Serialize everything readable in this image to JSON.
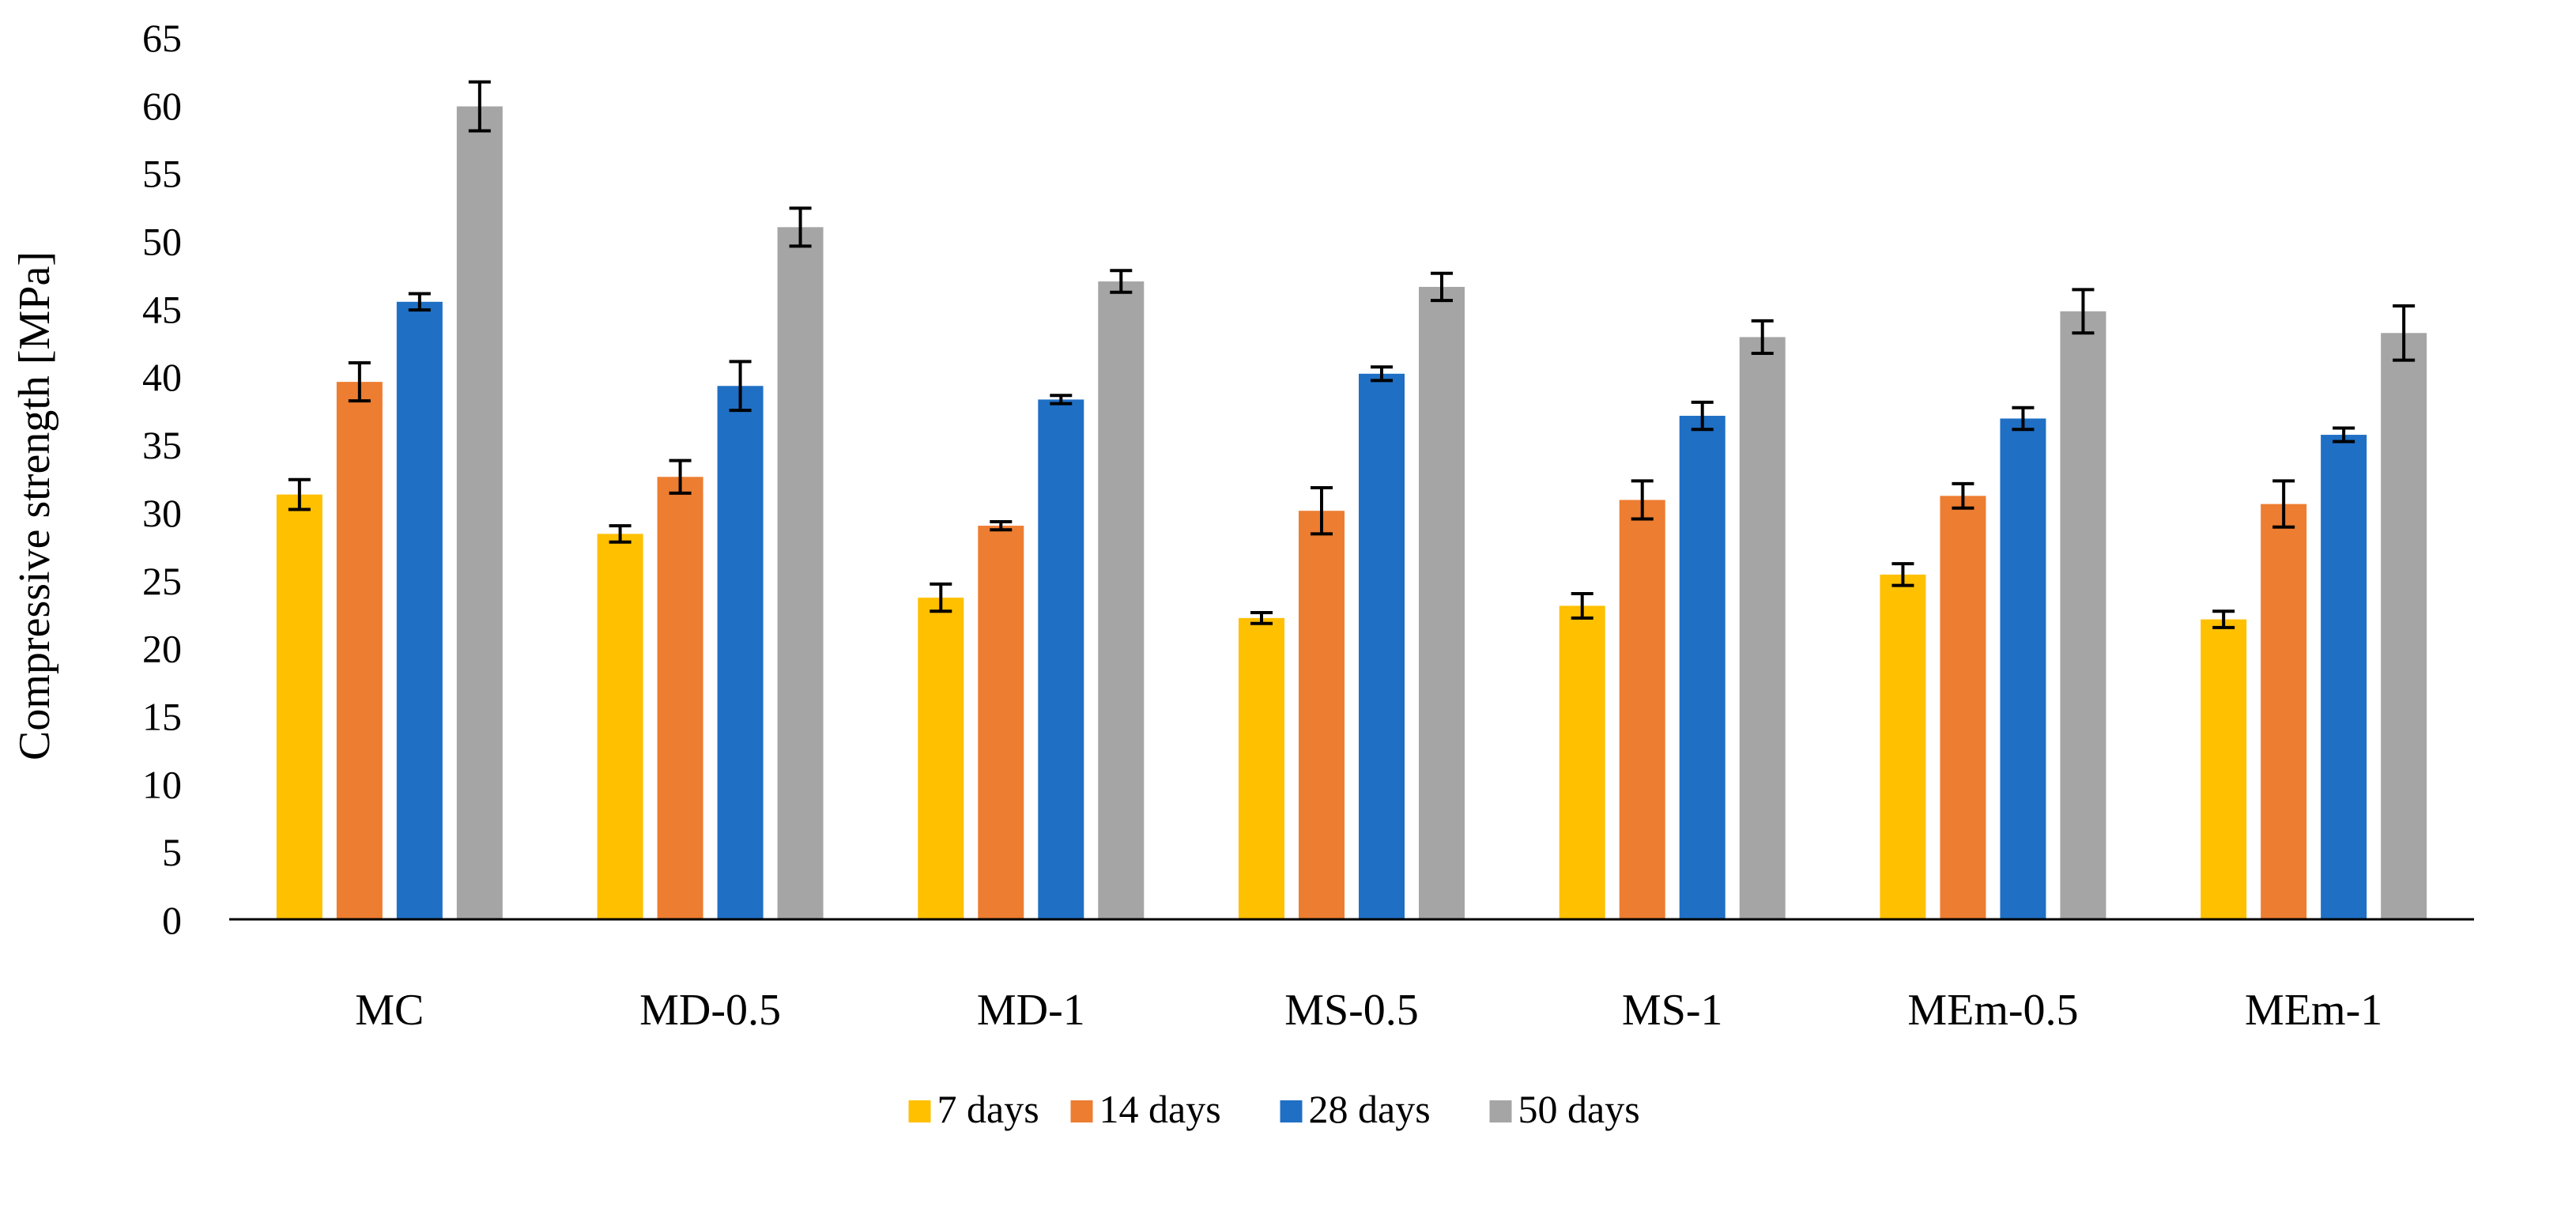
{
  "chart_data": {
    "type": "bar",
    "title": "",
    "xlabel": "",
    "ylabel": "Compressive strength [MPa]",
    "ylim": [
      0,
      65
    ],
    "yticks": [
      0,
      5,
      10,
      15,
      20,
      25,
      30,
      35,
      40,
      45,
      50,
      55,
      60,
      65
    ],
    "grid": false,
    "legend_position": "bottom",
    "categories": [
      "MC",
      "MD-0.5",
      "MD-1",
      "MS-0.5",
      "MS-1",
      "MEm-0.5",
      "MEm-1"
    ],
    "series": [
      {
        "name": "7 days",
        "color": "#FFC000",
        "values": [
          31.3,
          28.4,
          23.7,
          22.2,
          23.1,
          25.4,
          22.1
        ],
        "errors": [
          1.1,
          0.6,
          1.0,
          0.4,
          0.9,
          0.8,
          0.6
        ]
      },
      {
        "name": "14 days",
        "color": "#ED7D31",
        "values": [
          39.6,
          32.6,
          29.0,
          30.1,
          30.9,
          31.2,
          30.6
        ],
        "errors": [
          1.4,
          1.2,
          0.3,
          1.7,
          1.4,
          0.9,
          1.7
        ]
      },
      {
        "name": "28 days",
        "color": "#1F6FC5",
        "values": [
          45.5,
          39.3,
          38.3,
          40.2,
          37.1,
          36.9,
          35.7
        ],
        "errors": [
          0.6,
          1.8,
          0.3,
          0.5,
          1.0,
          0.8,
          0.5
        ]
      },
      {
        "name": "50 days",
        "color": "#A5A5A5",
        "values": [
          59.9,
          51.0,
          47.0,
          46.6,
          42.9,
          44.8,
          43.2
        ],
        "errors": [
          1.8,
          1.4,
          0.8,
          1.0,
          1.2,
          1.6,
          2.0
        ]
      }
    ]
  }
}
